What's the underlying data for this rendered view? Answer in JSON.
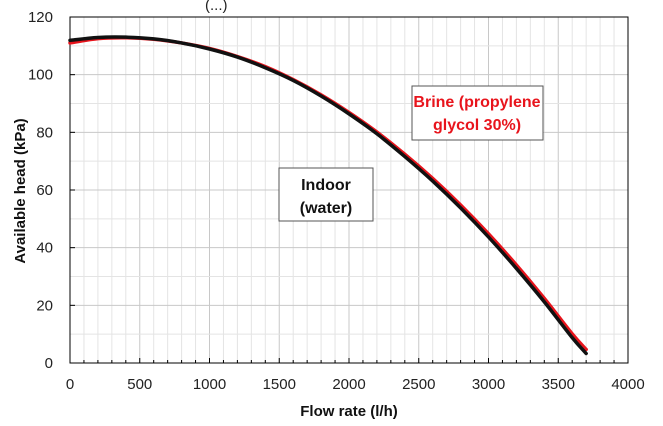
{
  "chart_data": {
    "type": "line",
    "title_fragment": "(...)",
    "xlabel": "Flow rate (l/h)",
    "ylabel": "Available head  (kPa)",
    "xlim": [
      0,
      4000
    ],
    "ylim": [
      0,
      120
    ],
    "xticks": [
      0,
      500,
      1000,
      1500,
      2000,
      2500,
      3000,
      3500,
      4000
    ],
    "yticks": [
      0,
      20,
      40,
      60,
      80,
      100,
      120
    ],
    "grid": true,
    "series": [
      {
        "name": "Brine (propylene glycol 30%)",
        "color": "#e8141c",
        "x": [
          0,
          200,
          400,
          600,
          800,
          1000,
          1200,
          1400,
          1600,
          1800,
          2000,
          2200,
          2400,
          2600,
          2800,
          3000,
          3200,
          3400,
          3600,
          3700
        ],
        "y": [
          111.0,
          112.5,
          112.8,
          112.3,
          111.0,
          109.1,
          106.3,
          102.8,
          98.3,
          93.0,
          86.9,
          80.1,
          72.4,
          64.0,
          54.8,
          44.8,
          34.0,
          22.4,
          10.1,
          4.7
        ]
      },
      {
        "name": "Indoor (water)",
        "color": "#111111",
        "x": [
          0,
          200,
          400,
          600,
          800,
          1000,
          1200,
          1400,
          1600,
          1800,
          2000,
          2200,
          2400,
          2600,
          2800,
          3000,
          3200,
          3400,
          3600,
          3700
        ],
        "y": [
          111.9,
          112.9,
          113.0,
          112.4,
          111.0,
          108.9,
          106.1,
          102.4,
          98.0,
          92.6,
          86.4,
          79.5,
          71.6,
          63.1,
          53.8,
          43.7,
          32.8,
          21.2,
          8.8,
          3.3
        ]
      }
    ],
    "annotations": [
      {
        "lines": [
          "Brine (propylene",
          "glycol 30%)"
        ],
        "color": "#e8141c"
      },
      {
        "lines": [
          "Indoor",
          "(water)"
        ],
        "color": "#111111"
      }
    ]
  }
}
